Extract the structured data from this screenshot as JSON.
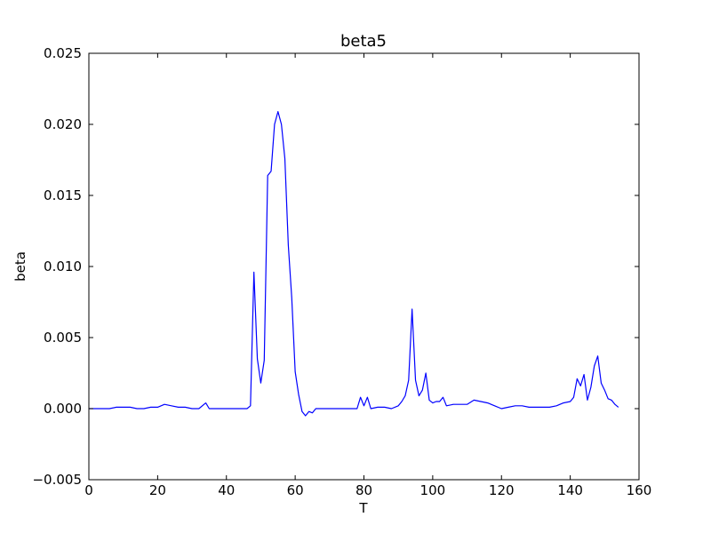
{
  "chart_data": {
    "type": "line",
    "title": "beta5",
    "xlabel": "T",
    "ylabel": "beta",
    "xlim": [
      0,
      160
    ],
    "ylim": [
      -0.005,
      0.025
    ],
    "grid": false,
    "x_ticks": [
      0,
      20,
      40,
      60,
      80,
      100,
      120,
      140,
      160
    ],
    "x_tick_labels": [
      "0",
      "20",
      "40",
      "60",
      "80",
      "100",
      "120",
      "140",
      "160"
    ],
    "y_ticks": [
      -0.005,
      0.0,
      0.005,
      0.01,
      0.015,
      0.02,
      0.025
    ],
    "y_tick_labels": [
      "−0.005",
      "0.000",
      "0.005",
      "0.010",
      "0.015",
      "0.020",
      "0.025"
    ],
    "line_color": "#0000ff",
    "series": [
      {
        "x": [
          0,
          2,
          4,
          6,
          8,
          10,
          12,
          14,
          16,
          18,
          20,
          22,
          24,
          26,
          28,
          30,
          32,
          34,
          35,
          38,
          40,
          42,
          44,
          46,
          47,
          48,
          49,
          50,
          51,
          52,
          53,
          54,
          55,
          56,
          57,
          58,
          59,
          60,
          61,
          62,
          63,
          64,
          65,
          66,
          68,
          70,
          72,
          74,
          76,
          78,
          79,
          80,
          81,
          82,
          84,
          86,
          88,
          90,
          91,
          92,
          93,
          94,
          95,
          96,
          97,
          98,
          99,
          100,
          101,
          102,
          103,
          104,
          106,
          108,
          110,
          112,
          114,
          116,
          118,
          120,
          122,
          124,
          126,
          128,
          130,
          132,
          134,
          136,
          138,
          140,
          141,
          142,
          143,
          144,
          145,
          146,
          147,
          148,
          149,
          150,
          151,
          152,
          153,
          154
        ],
        "values": [
          0.0,
          0.0,
          0.0,
          0.0,
          0.0001,
          0.0001,
          0.0001,
          0.0,
          0.0,
          0.0001,
          0.0001,
          0.0003,
          0.0002,
          0.0001,
          0.0001,
          0.0,
          0.0,
          0.0004,
          0.0,
          0.0,
          0.0,
          0.0,
          0.0,
          0.0,
          0.0002,
          0.0096,
          0.0035,
          0.0018,
          0.0034,
          0.0164,
          0.0167,
          0.02,
          0.0209,
          0.02,
          0.0176,
          0.0115,
          0.0078,
          0.0026,
          0.001,
          -0.0002,
          -0.0005,
          -0.0002,
          -0.0003,
          0.0,
          0.0,
          0.0,
          0.0,
          0.0,
          0.0,
          0.0,
          0.0008,
          0.0002,
          0.0008,
          0.0,
          0.0001,
          0.0001,
          0.0,
          0.0002,
          0.0005,
          0.0009,
          0.002,
          0.007,
          0.002,
          0.0009,
          0.0013,
          0.0025,
          0.0006,
          0.0004,
          0.0005,
          0.0005,
          0.0008,
          0.0002,
          0.0003,
          0.0003,
          0.0003,
          0.0006,
          0.0005,
          0.0004,
          0.0002,
          0.0,
          0.0001,
          0.0002,
          0.0002,
          0.0001,
          0.0001,
          0.0001,
          0.0001,
          0.0002,
          0.0004,
          0.0005,
          0.0008,
          0.0021,
          0.0016,
          0.0024,
          0.0006,
          0.0015,
          0.003,
          0.0037,
          0.0018,
          0.0013,
          0.0007,
          0.0006,
          0.0003,
          0.0001
        ]
      }
    ]
  }
}
